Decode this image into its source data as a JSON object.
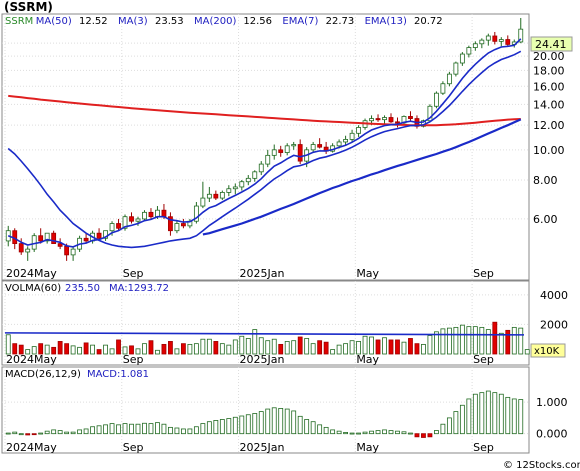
{
  "ticker_label": "(SSRM)",
  "watermark": "© 12Stocks.com",
  "price_panel": {
    "legend": [
      {
        "key": "ticker",
        "text": "SSRM",
        "color": "#2a8a2a"
      },
      {
        "key": "ma50",
        "text": "MA(50)",
        "value": "12.52",
        "color": "#2020c0"
      },
      {
        "key": "ma3",
        "text": "MA(3)",
        "value": "23.53",
        "color": "#2020c0"
      },
      {
        "key": "ma200",
        "text": "MA(200)",
        "value": "12.56",
        "color": "#2020c0"
      },
      {
        "key": "ema7",
        "text": "EMA(7)",
        "value": "22.73",
        "color": "#2020c0"
      },
      {
        "key": "ema13",
        "text": "EMA(13)",
        "value": "20.72",
        "color": "#2020c0"
      }
    ],
    "last_price": "24.41",
    "last_price_value": 24.41,
    "y_ticks": [
      {
        "label": "22.00",
        "value": 22
      },
      {
        "label": "20.00",
        "value": 20
      },
      {
        "label": "18.00",
        "value": 18
      },
      {
        "label": "16.00",
        "value": 16
      },
      {
        "label": "14.00",
        "value": 14
      },
      {
        "label": "12.00",
        "value": 12
      },
      {
        "label": "10.00",
        "value": 10
      },
      {
        "label": "8.00",
        "value": 8
      },
      {
        "label": "6.00",
        "value": 6
      }
    ]
  },
  "volume_panel": {
    "legend_prefix": "VOLMA(60)",
    "legend_value": "235.50",
    "legend_ma": "MA:1293.72",
    "y_ticks": [
      {
        "label": "4000",
        "value": 4000
      },
      {
        "label": "2000",
        "value": 2000
      }
    ],
    "unit_badge": "x10K"
  },
  "macd_panel": {
    "legend_prefix": "MACD(26,12,9)",
    "legend_value": "MACD:1.081",
    "y_ticks": [
      {
        "label": "1.000",
        "value": 1.0
      },
      {
        "label": "0.000",
        "value": 0.0
      }
    ]
  },
  "x_axis": {
    "labels": [
      {
        "text": "2024May",
        "index": 0
      },
      {
        "text": "Sep",
        "index": 18
      },
      {
        "text": "2025Jan",
        "index": 36
      },
      {
        "text": "May",
        "index": 54
      },
      {
        "text": "Sep",
        "index": 72
      }
    ]
  },
  "chart_data": {
    "type": "candlestick",
    "candles_weekly": [
      {
        "o": 5.1,
        "h": 5.7,
        "l": 4.9,
        "c": 5.5,
        "up": true
      },
      {
        "o": 5.5,
        "h": 5.6,
        "l": 4.8,
        "c": 5.0,
        "up": false
      },
      {
        "o": 5.0,
        "h": 5.2,
        "l": 4.6,
        "c": 4.7,
        "up": false
      },
      {
        "o": 4.7,
        "h": 4.9,
        "l": 4.4,
        "c": 4.8,
        "up": true
      },
      {
        "o": 4.8,
        "h": 5.4,
        "l": 4.7,
        "c": 5.3,
        "up": true
      },
      {
        "o": 5.3,
        "h": 5.6,
        "l": 5.0,
        "c": 5.1,
        "up": false
      },
      {
        "o": 5.1,
        "h": 5.4,
        "l": 5.0,
        "c": 5.4,
        "up": true
      },
      {
        "o": 5.4,
        "h": 5.5,
        "l": 5.0,
        "c": 5.0,
        "up": false
      },
      {
        "o": 5.0,
        "h": 5.2,
        "l": 4.8,
        "c": 4.9,
        "up": false
      },
      {
        "o": 4.9,
        "h": 5.0,
        "l": 4.4,
        "c": 4.6,
        "up": false
      },
      {
        "o": 4.6,
        "h": 4.9,
        "l": 4.4,
        "c": 4.8,
        "up": true
      },
      {
        "o": 4.8,
        "h": 5.3,
        "l": 4.7,
        "c": 5.2,
        "up": true
      },
      {
        "o": 5.2,
        "h": 5.4,
        "l": 5.0,
        "c": 5.1,
        "up": false
      },
      {
        "o": 5.1,
        "h": 5.5,
        "l": 5.0,
        "c": 5.4,
        "up": true
      },
      {
        "o": 5.4,
        "h": 5.6,
        "l": 5.1,
        "c": 5.2,
        "up": false
      },
      {
        "o": 5.2,
        "h": 5.5,
        "l": 5.1,
        "c": 5.5,
        "up": true
      },
      {
        "o": 5.5,
        "h": 5.9,
        "l": 5.3,
        "c": 5.8,
        "up": true
      },
      {
        "o": 5.8,
        "h": 6.0,
        "l": 5.5,
        "c": 5.6,
        "up": false
      },
      {
        "o": 5.6,
        "h": 6.2,
        "l": 5.5,
        "c": 6.1,
        "up": true
      },
      {
        "o": 6.1,
        "h": 6.3,
        "l": 5.8,
        "c": 5.9,
        "up": false
      },
      {
        "o": 5.9,
        "h": 6.1,
        "l": 5.7,
        "c": 6.0,
        "up": true
      },
      {
        "o": 6.0,
        "h": 6.4,
        "l": 5.9,
        "c": 6.3,
        "up": true
      },
      {
        "o": 6.3,
        "h": 6.5,
        "l": 6.0,
        "c": 6.1,
        "up": false
      },
      {
        "o": 6.1,
        "h": 6.6,
        "l": 6.0,
        "c": 6.4,
        "up": true
      },
      {
        "o": 6.4,
        "h": 6.7,
        "l": 6.0,
        "c": 6.1,
        "up": false
      },
      {
        "o": 6.1,
        "h": 6.3,
        "l": 5.3,
        "c": 5.5,
        "up": false
      },
      {
        "o": 5.5,
        "h": 5.9,
        "l": 5.4,
        "c": 5.8,
        "up": true
      },
      {
        "o": 5.8,
        "h": 6.0,
        "l": 5.6,
        "c": 5.7,
        "up": false
      },
      {
        "o": 5.7,
        "h": 6.0,
        "l": 5.6,
        "c": 5.9,
        "up": true
      },
      {
        "o": 5.9,
        "h": 6.8,
        "l": 5.8,
        "c": 6.6,
        "up": true
      },
      {
        "o": 6.6,
        "h": 7.9,
        "l": 6.5,
        "c": 7.0,
        "up": true
      },
      {
        "o": 7.0,
        "h": 7.6,
        "l": 6.8,
        "c": 7.2,
        "up": true
      },
      {
        "o": 7.2,
        "h": 7.4,
        "l": 6.9,
        "c": 7.0,
        "up": false
      },
      {
        "o": 7.0,
        "h": 7.4,
        "l": 6.9,
        "c": 7.3,
        "up": true
      },
      {
        "o": 7.3,
        "h": 7.7,
        "l": 7.1,
        "c": 7.5,
        "up": true
      },
      {
        "o": 7.5,
        "h": 7.8,
        "l": 7.2,
        "c": 7.6,
        "up": true
      },
      {
        "o": 7.6,
        "h": 8.0,
        "l": 7.4,
        "c": 7.9,
        "up": true
      },
      {
        "o": 7.9,
        "h": 8.3,
        "l": 7.7,
        "c": 8.1,
        "up": true
      },
      {
        "o": 8.1,
        "h": 8.6,
        "l": 7.9,
        "c": 8.5,
        "up": true
      },
      {
        "o": 8.5,
        "h": 9.2,
        "l": 8.3,
        "c": 9.0,
        "up": true
      },
      {
        "o": 9.0,
        "h": 10.0,
        "l": 8.8,
        "c": 9.6,
        "up": true
      },
      {
        "o": 9.6,
        "h": 10.4,
        "l": 9.3,
        "c": 10.0,
        "up": true
      },
      {
        "o": 10.0,
        "h": 10.3,
        "l": 9.5,
        "c": 9.8,
        "up": false
      },
      {
        "o": 9.8,
        "h": 10.5,
        "l": 9.6,
        "c": 10.3,
        "up": true
      },
      {
        "o": 10.3,
        "h": 10.6,
        "l": 10.0,
        "c": 10.4,
        "up": true
      },
      {
        "o": 10.4,
        "h": 10.8,
        "l": 9.0,
        "c": 9.2,
        "up": false
      },
      {
        "o": 9.2,
        "h": 10.2,
        "l": 8.8,
        "c": 10.0,
        "up": true
      },
      {
        "o": 10.0,
        "h": 10.6,
        "l": 9.8,
        "c": 10.4,
        "up": true
      },
      {
        "o": 10.4,
        "h": 10.9,
        "l": 10.1,
        "c": 10.2,
        "up": false
      },
      {
        "o": 10.2,
        "h": 10.6,
        "l": 9.7,
        "c": 9.9,
        "up": false
      },
      {
        "o": 9.9,
        "h": 10.5,
        "l": 9.8,
        "c": 10.3,
        "up": true
      },
      {
        "o": 10.3,
        "h": 10.8,
        "l": 10.1,
        "c": 10.6,
        "up": true
      },
      {
        "o": 10.6,
        "h": 11.1,
        "l": 10.3,
        "c": 10.8,
        "up": true
      },
      {
        "o": 10.8,
        "h": 11.6,
        "l": 10.6,
        "c": 11.3,
        "up": true
      },
      {
        "o": 11.3,
        "h": 12.0,
        "l": 11.0,
        "c": 11.8,
        "up": true
      },
      {
        "o": 11.8,
        "h": 12.6,
        "l": 11.6,
        "c": 12.4,
        "up": true
      },
      {
        "o": 12.4,
        "h": 12.9,
        "l": 12.0,
        "c": 12.6,
        "up": true
      },
      {
        "o": 12.6,
        "h": 13.0,
        "l": 12.3,
        "c": 12.5,
        "up": false
      },
      {
        "o": 12.5,
        "h": 12.9,
        "l": 12.1,
        "c": 12.7,
        "up": true
      },
      {
        "o": 12.7,
        "h": 13.1,
        "l": 12.2,
        "c": 12.3,
        "up": false
      },
      {
        "o": 12.3,
        "h": 12.7,
        "l": 11.8,
        "c": 12.2,
        "up": false
      },
      {
        "o": 12.2,
        "h": 12.9,
        "l": 12.0,
        "c": 12.8,
        "up": true
      },
      {
        "o": 12.8,
        "h": 13.3,
        "l": 12.4,
        "c": 12.6,
        "up": false
      },
      {
        "o": 12.6,
        "h": 12.9,
        "l": 11.7,
        "c": 11.9,
        "up": false
      },
      {
        "o": 11.9,
        "h": 12.5,
        "l": 11.8,
        "c": 12.4,
        "up": true
      },
      {
        "o": 12.4,
        "h": 14.0,
        "l": 12.3,
        "c": 13.8,
        "up": true
      },
      {
        "o": 13.8,
        "h": 15.4,
        "l": 13.6,
        "c": 15.2,
        "up": true
      },
      {
        "o": 15.2,
        "h": 16.6,
        "l": 15.0,
        "c": 16.3,
        "up": true
      },
      {
        "o": 16.3,
        "h": 17.8,
        "l": 16.0,
        "c": 17.5,
        "up": true
      },
      {
        "o": 17.5,
        "h": 19.2,
        "l": 17.2,
        "c": 19.0,
        "up": true
      },
      {
        "o": 19.0,
        "h": 20.6,
        "l": 18.6,
        "c": 20.3,
        "up": true
      },
      {
        "o": 20.3,
        "h": 21.6,
        "l": 19.8,
        "c": 21.3,
        "up": true
      },
      {
        "o": 21.3,
        "h": 22.3,
        "l": 20.8,
        "c": 21.9,
        "up": true
      },
      {
        "o": 21.9,
        "h": 22.8,
        "l": 21.2,
        "c": 22.5,
        "up": true
      },
      {
        "o": 22.5,
        "h": 23.6,
        "l": 21.6,
        "c": 23.2,
        "up": true
      },
      {
        "o": 23.2,
        "h": 23.9,
        "l": 21.8,
        "c": 22.3,
        "up": false
      },
      {
        "o": 22.3,
        "h": 23.0,
        "l": 21.5,
        "c": 22.6,
        "up": true
      },
      {
        "o": 22.6,
        "h": 23.3,
        "l": 21.4,
        "c": 21.8,
        "up": false
      },
      {
        "o": 21.8,
        "h": 22.6,
        "l": 21.3,
        "c": 22.2,
        "up": true
      },
      {
        "o": 22.2,
        "h": 26.5,
        "l": 22.0,
        "c": 24.4,
        "up": true
      }
    ],
    "ma200": [
      14.9,
      14.82,
      14.74,
      14.66,
      14.58,
      14.5,
      14.43,
      14.36,
      14.29,
      14.22,
      14.15,
      14.08,
      14.02,
      13.96,
      13.9,
      13.84,
      13.78,
      13.72,
      13.66,
      13.6,
      13.55,
      13.5,
      13.45,
      13.4,
      13.35,
      13.3,
      13.25,
      13.2,
      13.16,
      13.12,
      13.08,
      13.04,
      13.0,
      12.96,
      12.92,
      12.88,
      12.84,
      12.8,
      12.76,
      12.72,
      12.68,
      12.64,
      12.6,
      12.56,
      12.52,
      12.48,
      12.44,
      12.4,
      12.37,
      12.34,
      12.31,
      12.28,
      12.25,
      12.22,
      12.19,
      12.16,
      12.13,
      12.1,
      12.08,
      12.06,
      12.04,
      12.02,
      12.0,
      11.99,
      11.99,
      11.99,
      12.0,
      12.02,
      12.05,
      12.08,
      12.12,
      12.17,
      12.22,
      12.28,
      12.34,
      12.4,
      12.45,
      12.5,
      12.54,
      12.56
    ],
    "ma50": [
      null,
      null,
      null,
      null,
      null,
      null,
      null,
      null,
      null,
      null,
      null,
      null,
      null,
      null,
      null,
      null,
      null,
      null,
      null,
      null,
      null,
      null,
      null,
      null,
      null,
      null,
      null,
      null,
      null,
      null,
      5.35,
      5.4,
      5.48,
      5.56,
      5.64,
      5.72,
      5.8,
      5.9,
      6.0,
      6.1,
      6.22,
      6.34,
      6.46,
      6.58,
      6.7,
      6.84,
      6.98,
      7.12,
      7.26,
      7.4,
      7.54,
      7.66,
      7.8,
      7.94,
      8.06,
      8.2,
      8.34,
      8.46,
      8.6,
      8.74,
      8.88,
      9.0,
      9.14,
      9.28,
      9.42,
      9.56,
      9.7,
      9.86,
      10.02,
      10.2,
      10.4,
      10.6,
      10.82,
      11.04,
      11.28,
      11.52,
      11.76,
      12.0,
      12.26,
      12.52
    ],
    "ema13": [
      10.1,
      9.7,
      9.2,
      8.7,
      8.2,
      7.7,
      7.2,
      6.8,
      6.4,
      6.1,
      5.8,
      5.6,
      5.4,
      5.25,
      5.12,
      5.02,
      4.95,
      4.9,
      4.88,
      4.86,
      4.88,
      4.9,
      4.95,
      5.0,
      5.05,
      5.1,
      5.14,
      5.17,
      5.2,
      5.3,
      5.5,
      5.72,
      5.9,
      6.1,
      6.3,
      6.5,
      6.72,
      6.94,
      7.2,
      7.46,
      7.76,
      8.06,
      8.3,
      8.58,
      8.82,
      8.9,
      9.04,
      9.24,
      9.4,
      9.5,
      9.64,
      9.8,
      9.98,
      10.2,
      10.46,
      10.76,
      11.02,
      11.24,
      11.44,
      11.58,
      11.7,
      11.84,
      11.96,
      11.96,
      12.02,
      12.3,
      12.74,
      13.28,
      13.88,
      14.6,
      15.4,
      16.2,
      16.96,
      17.7,
      18.44,
      19.0,
      19.5,
      19.84,
      20.2,
      20.72
    ],
    "ema7": [
      5.3,
      5.2,
      5.05,
      4.95,
      5.0,
      5.05,
      5.15,
      5.1,
      5.05,
      4.92,
      4.88,
      4.98,
      5.02,
      5.12,
      5.15,
      5.25,
      5.42,
      5.5,
      5.66,
      5.72,
      5.8,
      5.92,
      5.98,
      6.1,
      6.1,
      5.96,
      5.92,
      5.86,
      5.88,
      6.04,
      6.3,
      6.52,
      6.62,
      6.8,
      6.98,
      7.14,
      7.32,
      7.52,
      7.76,
      8.08,
      8.48,
      8.86,
      9.08,
      9.36,
      9.6,
      9.5,
      9.62,
      9.82,
      9.92,
      9.92,
      10.02,
      10.18,
      10.34,
      10.58,
      10.88,
      11.26,
      11.58,
      11.78,
      11.96,
      12.04,
      12.08,
      12.26,
      12.36,
      12.24,
      12.28,
      12.66,
      13.3,
      14.06,
      14.9,
      15.9,
      16.96,
      17.94,
      18.82,
      19.66,
      20.46,
      20.98,
      21.38,
      21.5,
      21.66,
      22.73
    ],
    "volume": [
      1300,
      700,
      600,
      300,
      500,
      700,
      600,
      450,
      850,
      700,
      550,
      450,
      750,
      600,
      300,
      600,
      350,
      950,
      480,
      550,
      350,
      700,
      900,
      250,
      650,
      850,
      350,
      700,
      650,
      700,
      1000,
      1000,
      850,
      700,
      600,
      950,
      1200,
      1050,
      1650,
      1100,
      900,
      1000,
      650,
      850,
      900,
      1150,
      1050,
      700,
      900,
      800,
      300,
      600,
      700,
      900,
      850,
      1200,
      1150,
      950,
      1100,
      950,
      950,
      800,
      1050,
      700,
      650,
      1250,
      1500,
      1700,
      1750,
      1800,
      1950,
      1850,
      1850,
      1800,
      1650,
      2150,
      1400,
      1600,
      1800,
      1750,
      300
    ],
    "volume_red": [
      false,
      true,
      true,
      false,
      false,
      true,
      false,
      true,
      true,
      true,
      false,
      false,
      true,
      false,
      true,
      false,
      false,
      true,
      false,
      true,
      false,
      false,
      true,
      false,
      true,
      true,
      false,
      true,
      false,
      false,
      false,
      false,
      true,
      false,
      false,
      false,
      false,
      false,
      false,
      false,
      false,
      false,
      true,
      false,
      false,
      true,
      false,
      false,
      true,
      true,
      false,
      false,
      false,
      false,
      false,
      false,
      false,
      true,
      false,
      true,
      true,
      false,
      true,
      true,
      false,
      false,
      false,
      false,
      false,
      false,
      false,
      false,
      false,
      false,
      false,
      true,
      false,
      true,
      false,
      false
    ],
    "macd": [
      0.02,
      0.05,
      0.0,
      -0.04,
      -0.02,
      0.02,
      0.08,
      0.12,
      0.1,
      0.05,
      0.05,
      0.12,
      0.15,
      0.22,
      0.25,
      0.28,
      0.32,
      0.28,
      0.32,
      0.3,
      0.3,
      0.33,
      0.32,
      0.35,
      0.3,
      0.2,
      0.18,
      0.15,
      0.15,
      0.22,
      0.32,
      0.38,
      0.42,
      0.45,
      0.48,
      0.52,
      0.56,
      0.6,
      0.64,
      0.7,
      0.78,
      0.82,
      0.8,
      0.78,
      0.72,
      0.55,
      0.45,
      0.38,
      0.28,
      0.2,
      0.12,
      0.08,
      0.04,
      0.02,
      0.02,
      0.05,
      0.08,
      0.1,
      0.12,
      0.1,
      0.08,
      0.06,
      0.02,
      -0.1,
      -0.12,
      -0.1,
      0.1,
      0.3,
      0.5,
      0.7,
      0.9,
      1.1,
      1.25,
      1.3,
      1.35,
      1.3,
      1.25,
      1.15,
      1.1,
      1.081
    ],
    "price_axis": {
      "scale": "log",
      "ylim": [
        4.3,
        26.5
      ]
    },
    "volume_axis": {
      "ylim": [
        0,
        4800
      ]
    },
    "macd_axis": {
      "ylim": [
        -0.2,
        1.7
      ]
    }
  }
}
